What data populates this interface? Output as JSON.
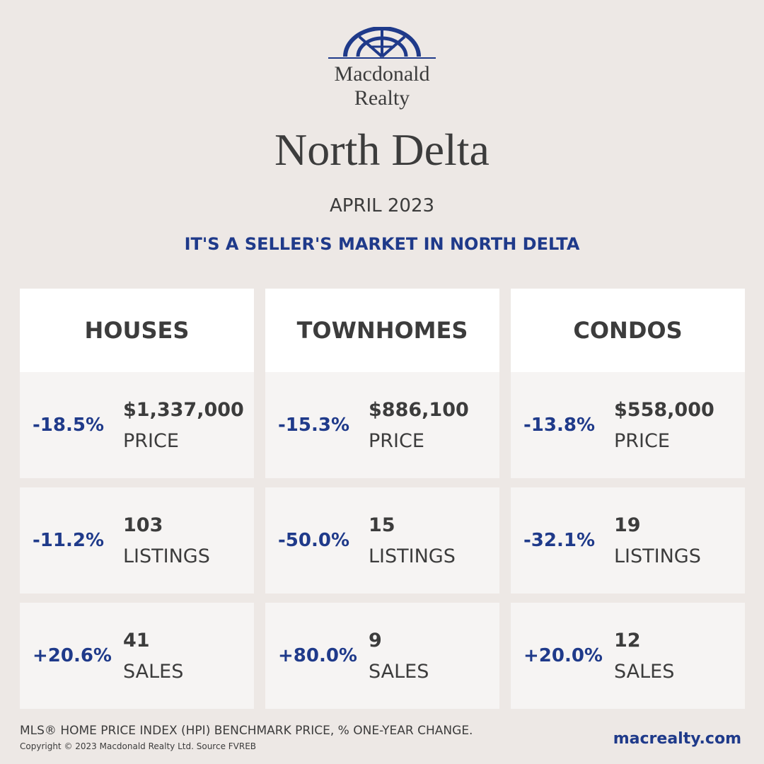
{
  "brand": {
    "logo_line1": "Macdonald",
    "logo_line2": "Realty",
    "logo_icon": "macdonald-realty-arch-logo",
    "brand_color": "#1f3a8a"
  },
  "title": "North Delta",
  "month": "APRIL 2023",
  "tagline": "IT'S A SELLER'S MARKET IN NORTH DELTA",
  "columns": [
    {
      "heading": "HOUSES",
      "rows": [
        {
          "pct": "-18.5%",
          "value": "$1,337,000",
          "label": "PRICE"
        },
        {
          "pct": "-11.2%",
          "value": "103",
          "label": "LISTINGS"
        },
        {
          "pct": "+20.6%",
          "value": "41",
          "label": "SALES"
        }
      ]
    },
    {
      "heading": "TOWNHOMES",
      "rows": [
        {
          "pct": "-15.3%",
          "value": "$886,100",
          "label": "PRICE"
        },
        {
          "pct": "-50.0%",
          "value": "15",
          "label": "LISTINGS"
        },
        {
          "pct": "+80.0%",
          "value": "9",
          "label": "SALES"
        }
      ]
    },
    {
      "heading": "CONDOS",
      "rows": [
        {
          "pct": "-13.8%",
          "value": "$558,000",
          "label": "PRICE"
        },
        {
          "pct": "-32.1%",
          "value": "19",
          "label": "LISTINGS"
        },
        {
          "pct": "+20.0%",
          "value": "12",
          "label": "SALES"
        }
      ]
    }
  ],
  "footer": {
    "note": "MLS® HOME PRICE INDEX (HPI) BENCHMARK PRICE, % ONE-YEAR CHANGE.",
    "copyright": "Copyright © 2023 Macdonald Realty Ltd. Source FVREB",
    "url": "macrealty.com"
  }
}
